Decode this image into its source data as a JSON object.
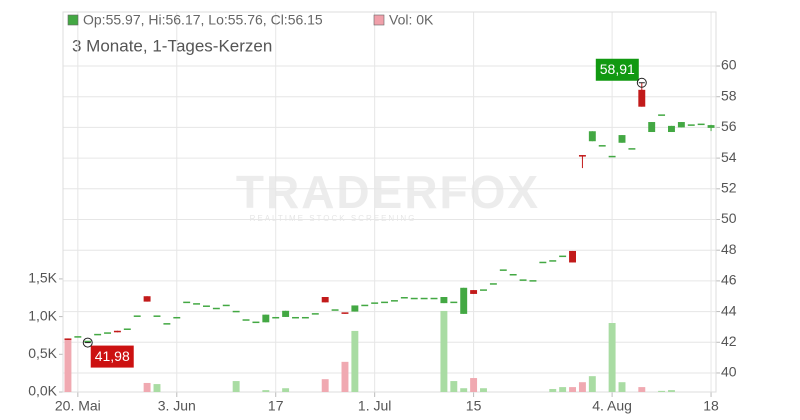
{
  "chart_data": {
    "type": "candlestick",
    "subtitle": "3 Monate, 1-Tages-Kerzen",
    "legend": [
      {
        "label": "Op:55.97, Hi:56.17, Lo:55.76, Cl:56.15",
        "color": "#43a843"
      },
      {
        "label": "Vol: 0K",
        "color": "#f0a0aa"
      }
    ],
    "watermark": {
      "title": "TRADERFOX",
      "tagline": "REALTIME STOCK SCREENING"
    },
    "up_color": "#43a843",
    "down_color": "#c21a1a",
    "volume_up_color": "#a9dca3",
    "volume_down_color": "#f0a9b1",
    "grid": true,
    "categories": [
      null,
      "20. Mai",
      null,
      null,
      null,
      null,
      null,
      null,
      null,
      null,
      null,
      "3. Jun",
      null,
      null,
      null,
      null,
      null,
      null,
      null,
      null,
      null,
      "17",
      null,
      null,
      null,
      null,
      null,
      null,
      null,
      null,
      null,
      "1. Jul",
      null,
      null,
      null,
      null,
      null,
      null,
      null,
      null,
      null,
      "15",
      null,
      null,
      null,
      null,
      null,
      null,
      null,
      null,
      null,
      null,
      null,
      null,
      null,
      "4. Aug",
      null,
      null,
      null,
      null,
      null,
      null,
      null,
      null,
      null,
      "18"
    ],
    "open": [
      42.25,
      42.35,
      42.05,
      42.5,
      42.6,
      42.75,
      42.85,
      43.7,
      45.0,
      43.7,
      43.2,
      43.6,
      44.6,
      44.5,
      44.35,
      44.2,
      44.4,
      44.0,
      43.45,
      43.3,
      43.3,
      43.6,
      43.65,
      43.6,
      43.6,
      43.85,
      44.95,
      44.1,
      43.9,
      44.0,
      44.4,
      44.55,
      44.6,
      44.7,
      44.9,
      44.85,
      44.85,
      44.85,
      44.55,
      44.6,
      43.85,
      45.4,
      45.4,
      45.8,
      46.7,
      46.4,
      46.05,
      46.0,
      47.2,
      47.3,
      47.6,
      47.95,
      54.2,
      55.1,
      54.8,
      54.1,
      55.0,
      54.6,
      58.45,
      55.7,
      56.8,
      55.7,
      56.0,
      56.15,
      56.2,
      55.97
    ],
    "high": [
      42.25,
      42.35,
      42.05,
      42.5,
      42.6,
      42.75,
      42.85,
      43.7,
      45.0,
      43.7,
      43.2,
      43.6,
      44.6,
      44.5,
      44.35,
      44.2,
      44.4,
      44.0,
      43.45,
      43.3,
      43.8,
      43.6,
      44.05,
      43.6,
      43.6,
      43.85,
      44.95,
      44.1,
      43.9,
      44.4,
      44.4,
      44.55,
      44.6,
      44.7,
      44.9,
      44.85,
      44.85,
      44.85,
      44.95,
      44.6,
      45.55,
      45.4,
      45.4,
      45.8,
      46.7,
      46.4,
      46.05,
      46.0,
      47.2,
      47.3,
      47.6,
      47.95,
      54.2,
      55.75,
      54.8,
      54.1,
      55.5,
      54.6,
      58.91,
      56.35,
      56.8,
      56.1,
      56.35,
      56.15,
      56.2,
      56.17
    ],
    "low": [
      42.15,
      42.35,
      41.98,
      42.5,
      42.6,
      42.65,
      42.85,
      43.7,
      44.65,
      43.7,
      43.2,
      43.6,
      44.6,
      44.5,
      44.35,
      44.2,
      44.4,
      44.0,
      43.45,
      43.3,
      43.3,
      43.6,
      43.65,
      43.6,
      43.6,
      43.85,
      44.6,
      44.1,
      43.85,
      44.0,
      44.4,
      44.55,
      44.6,
      44.7,
      44.9,
      44.85,
      44.85,
      44.85,
      44.55,
      44.6,
      43.85,
      45.15,
      45.4,
      45.8,
      46.7,
      46.4,
      46.05,
      46.0,
      47.2,
      47.3,
      47.6,
      47.2,
      53.35,
      55.1,
      54.8,
      54.1,
      55.0,
      54.6,
      57.35,
      55.7,
      56.8,
      55.7,
      56.0,
      56.15,
      56.2,
      55.76
    ],
    "close": [
      42.15,
      42.35,
      42.05,
      42.5,
      42.6,
      42.65,
      42.85,
      43.7,
      44.65,
      43.7,
      43.2,
      43.6,
      44.6,
      44.5,
      44.35,
      44.2,
      44.4,
      44.0,
      43.45,
      43.3,
      43.8,
      43.6,
      44.05,
      43.6,
      43.6,
      43.85,
      44.6,
      44.1,
      43.85,
      44.4,
      44.4,
      44.55,
      44.6,
      44.7,
      44.9,
      44.85,
      44.85,
      44.85,
      44.95,
      44.6,
      45.55,
      45.15,
      45.4,
      45.8,
      46.7,
      46.4,
      46.05,
      46.0,
      47.2,
      47.3,
      47.6,
      47.2,
      54.1,
      55.75,
      54.8,
      54.1,
      55.5,
      54.6,
      57.35,
      56.35,
      56.8,
      56.1,
      56.35,
      56.15,
      56.2,
      56.15
    ],
    "volume": [
      690,
      0,
      0,
      0,
      0,
      0,
      0,
      0,
      120,
      105,
      0,
      0,
      0,
      0,
      0,
      0,
      0,
      145,
      0,
      0,
      25,
      0,
      50,
      0,
      0,
      0,
      170,
      0,
      400,
      810,
      0,
      0,
      0,
      0,
      0,
      0,
      0,
      0,
      1075,
      145,
      50,
      185,
      50,
      0,
      0,
      0,
      0,
      0,
      0,
      40,
      65,
      65,
      130,
      210,
      0,
      915,
      130,
      0,
      65,
      0,
      15,
      25,
      0,
      0,
      0,
      0
    ],
    "ylim": [
      38.76,
      63.52
    ],
    "yticks": [
      40,
      42,
      44,
      46,
      48,
      50,
      52,
      54,
      56,
      58,
      60
    ],
    "y2lim": [
      0,
      5040
    ],
    "y2ticks": [
      {
        "value": 0,
        "label": "0,0K"
      },
      {
        "value": 500,
        "label": "0,5K"
      },
      {
        "value": 1000,
        "label": "1,0K"
      },
      {
        "value": 1500,
        "label": "1,5K"
      }
    ],
    "annotations": [
      {
        "value": 58.91,
        "label": "58,91",
        "color": "#119911"
      },
      {
        "value": 41.98,
        "label": "41,98",
        "color": "#cc1111"
      }
    ]
  }
}
